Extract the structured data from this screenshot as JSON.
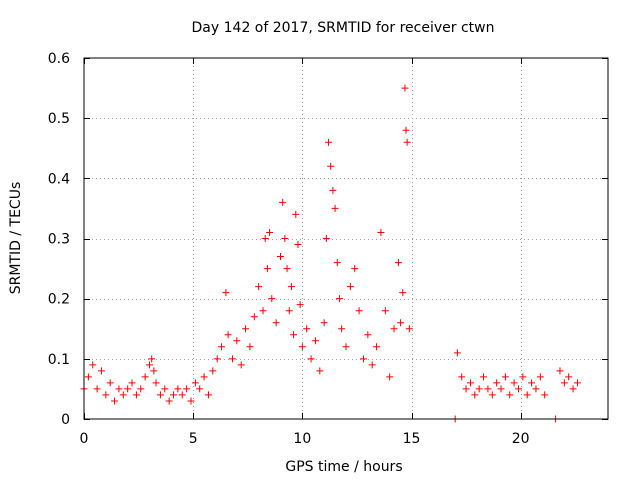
{
  "chart_data": {
    "type": "scatter",
    "title": "Day 142 of 2017, SRMTID for receiver ctwn",
    "xlabel": "GPS time / hours",
    "ylabel": "SRMTID / TECUs",
    "xlim": [
      0,
      24
    ],
    "ylim": [
      0,
      0.6
    ],
    "x_ticks": [
      0,
      5,
      10,
      15,
      20
    ],
    "x_tick_labels": [
      "0",
      "5",
      "10",
      "15",
      "20"
    ],
    "y_ticks": [
      0,
      0.1,
      0.2,
      0.3,
      0.4,
      0.5,
      0.6
    ],
    "y_tick_labels": [
      "0",
      "0.1",
      "0.2",
      "0.3",
      "0.4",
      "0.5",
      "0.6"
    ],
    "grid": true,
    "marker": "+",
    "color": "#ff0000",
    "series": [
      {
        "name": "SRMTID",
        "x": [
          0.0,
          0.2,
          0.4,
          0.6,
          0.8,
          1.0,
          1.2,
          1.4,
          1.6,
          1.8,
          2.0,
          2.2,
          2.4,
          2.6,
          2.8,
          3.0,
          3.1,
          3.2,
          3.3,
          3.5,
          3.7,
          3.9,
          4.1,
          4.3,
          4.5,
          4.7,
          4.9,
          5.1,
          5.3,
          5.5,
          5.7,
          5.9,
          6.1,
          6.3,
          6.5,
          6.6,
          6.8,
          7.0,
          7.2,
          7.4,
          7.6,
          7.8,
          8.0,
          8.2,
          8.3,
          8.4,
          8.5,
          8.6,
          8.8,
          9.0,
          9.1,
          9.2,
          9.3,
          9.4,
          9.5,
          9.6,
          9.7,
          9.8,
          9.9,
          10.0,
          10.2,
          10.4,
          10.6,
          10.8,
          11.0,
          11.1,
          11.2,
          11.3,
          11.4,
          11.5,
          11.6,
          11.7,
          11.8,
          12.0,
          12.2,
          12.4,
          12.6,
          12.8,
          13.0,
          13.2,
          13.4,
          13.6,
          13.8,
          14.0,
          14.2,
          14.4,
          14.5,
          14.6,
          14.7,
          14.75,
          14.8,
          14.9,
          17.0,
          17.1,
          17.3,
          17.5,
          17.7,
          17.9,
          18.1,
          18.3,
          18.5,
          18.7,
          18.9,
          19.1,
          19.3,
          19.5,
          19.7,
          19.9,
          20.1,
          20.3,
          20.5,
          20.7,
          20.9,
          21.1,
          21.6,
          21.8,
          22.0,
          22.2,
          22.4,
          22.6
        ],
        "y": [
          0.05,
          0.07,
          0.09,
          0.05,
          0.08,
          0.04,
          0.06,
          0.03,
          0.05,
          0.04,
          0.05,
          0.06,
          0.04,
          0.05,
          0.07,
          0.09,
          0.1,
          0.08,
          0.06,
          0.04,
          0.05,
          0.03,
          0.04,
          0.05,
          0.04,
          0.05,
          0.03,
          0.06,
          0.05,
          0.07,
          0.04,
          0.08,
          0.1,
          0.12,
          0.21,
          0.14,
          0.1,
          0.13,
          0.09,
          0.15,
          0.12,
          0.17,
          0.22,
          0.18,
          0.3,
          0.25,
          0.31,
          0.2,
          0.16,
          0.27,
          0.36,
          0.3,
          0.25,
          0.18,
          0.22,
          0.14,
          0.34,
          0.29,
          0.19,
          0.12,
          0.15,
          0.1,
          0.13,
          0.08,
          0.16,
          0.3,
          0.46,
          0.42,
          0.38,
          0.35,
          0.26,
          0.2,
          0.15,
          0.12,
          0.22,
          0.25,
          0.18,
          0.1,
          0.14,
          0.09,
          0.12,
          0.31,
          0.18,
          0.07,
          0.15,
          0.26,
          0.16,
          0.21,
          0.55,
          0.48,
          0.46,
          0.15,
          0.0,
          0.11,
          0.07,
          0.05,
          0.06,
          0.04,
          0.05,
          0.07,
          0.05,
          0.04,
          0.06,
          0.05,
          0.07,
          0.04,
          0.06,
          0.05,
          0.07,
          0.04,
          0.06,
          0.05,
          0.07,
          0.04,
          0.0,
          0.08,
          0.06,
          0.07,
          0.05,
          0.06
        ]
      }
    ]
  }
}
